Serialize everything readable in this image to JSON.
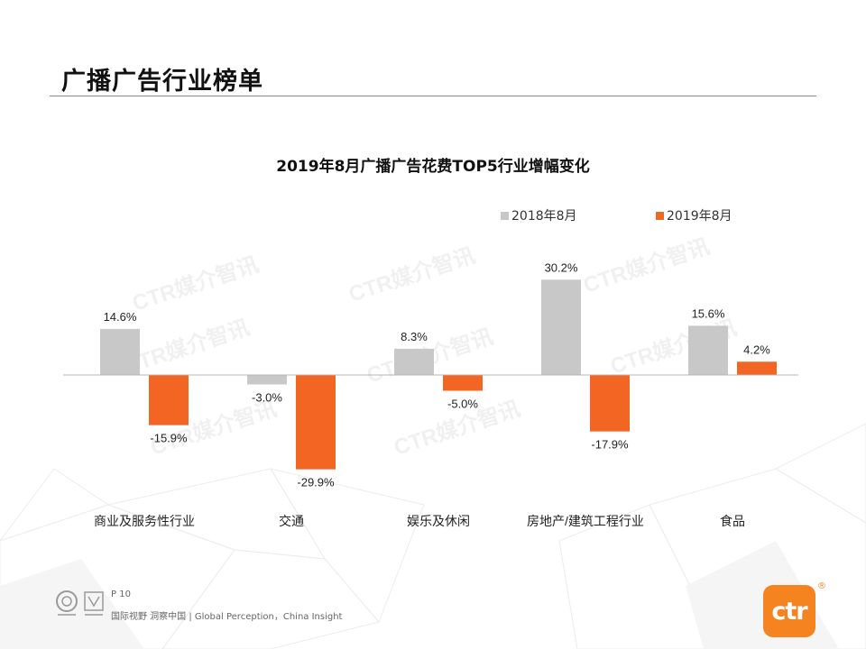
{
  "page": {
    "title": "广播广告行业榜单"
  },
  "chart_data": {
    "type": "bar",
    "title": "2019年8月广播广告花费TOP5行业增幅变化",
    "categories": [
      "商业及服务性行业",
      "交通",
      "娱乐及休闲",
      "房地产/建筑工程行业",
      "食品"
    ],
    "series": [
      {
        "name": "2018年8月",
        "color": "#c8c8c8",
        "values": [
          14.6,
          -3.0,
          8.3,
          30.2,
          15.6
        ],
        "labels": [
          "14.6%",
          "-3.0%",
          "8.3%",
          "30.2%",
          "15.6%"
        ]
      },
      {
        "name": "2019年8月",
        "color": "#f26522",
        "values": [
          -15.9,
          -29.9,
          -5.0,
          -17.9,
          4.2
        ],
        "labels": [
          "-15.9%",
          "-29.9%",
          "-5.0%",
          "-17.9%",
          "4.2%"
        ]
      }
    ],
    "ylim": [
      -30,
      30
    ],
    "xlabel": "",
    "ylabel": "",
    "legend_position": "top-right",
    "grid": false
  },
  "watermarks": [
    "CTR媒介智讯",
    "CTR媒介智讯",
    "CTR媒介智讯",
    "CTR媒介智讯",
    "CTR媒介智讯",
    "CTR媒介智讯",
    "CTR媒介智讯",
    "CTR媒介智讯"
  ],
  "footer": {
    "page_number": "P 10",
    "slogan": "国际视野  洞察中国 |  Global Perception，China Insight"
  },
  "brand": {
    "logo_text": "ctr",
    "reg_mark": "®"
  }
}
